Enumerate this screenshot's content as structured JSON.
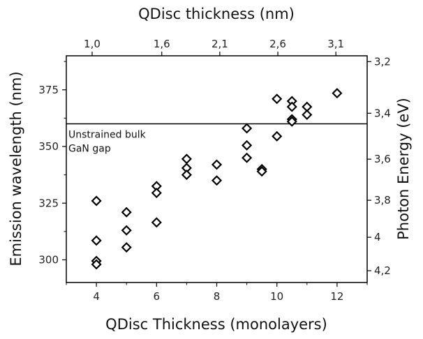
{
  "chart_data": {
    "type": "scatter",
    "xlabel": "QDisc Thickness (monolayers)",
    "ylabel": "Emission wavelength (nm)",
    "x2label": "QDisc thickness (nm)",
    "y2label": "Photon Energy (eV)",
    "xlim": [
      3,
      13
    ],
    "ylim": [
      290,
      390
    ],
    "x_ticks": [
      4,
      6,
      8,
      10,
      12
    ],
    "y_ticks": [
      300,
      325,
      350,
      375
    ],
    "x2_ticks": [
      {
        "label": "1,0",
        "value": 1.0
      },
      {
        "label": "1,6",
        "value": 1.6
      },
      {
        "label": "2,1",
        "value": 2.1
      },
      {
        "label": "2,6",
        "value": 2.6
      },
      {
        "label": "3,1",
        "value": 3.1
      }
    ],
    "y2_ticks": [
      {
        "label": "3,2",
        "value": 3.2
      },
      {
        "label": "3,4",
        "value": 3.4
      },
      {
        "label": "3,6",
        "value": 3.6
      },
      {
        "label": "3,8",
        "value": 3.8
      },
      {
        "label": "4",
        "value": 4.0
      },
      {
        "label": "4,2",
        "value": 4.2
      }
    ],
    "reference_line": {
      "y": 360,
      "label_lines": [
        "Unstrained bulk",
        "GaN gap"
      ]
    },
    "marker": "diamond-open",
    "marker_color": "#000000",
    "points": [
      {
        "x": 4,
        "y": 326
      },
      {
        "x": 4,
        "y": 308.5
      },
      {
        "x": 4,
        "y": 299.5
      },
      {
        "x": 4,
        "y": 298
      },
      {
        "x": 5,
        "y": 321
      },
      {
        "x": 5,
        "y": 313
      },
      {
        "x": 5,
        "y": 305.5
      },
      {
        "x": 6,
        "y": 332.5
      },
      {
        "x": 6,
        "y": 329.5
      },
      {
        "x": 6,
        "y": 316.5
      },
      {
        "x": 7,
        "y": 344.5
      },
      {
        "x": 7,
        "y": 340.5
      },
      {
        "x": 7,
        "y": 337.5
      },
      {
        "x": 8,
        "y": 342
      },
      {
        "x": 8,
        "y": 335
      },
      {
        "x": 9,
        "y": 358
      },
      {
        "x": 9,
        "y": 350.5
      },
      {
        "x": 9,
        "y": 345
      },
      {
        "x": 9.5,
        "y": 340
      },
      {
        "x": 9.5,
        "y": 339
      },
      {
        "x": 10,
        "y": 371
      },
      {
        "x": 10,
        "y": 354.5
      },
      {
        "x": 10.5,
        "y": 370
      },
      {
        "x": 10.5,
        "y": 367.5
      },
      {
        "x": 10.5,
        "y": 362
      },
      {
        "x": 10.5,
        "y": 361
      },
      {
        "x": 11,
        "y": 367.5
      },
      {
        "x": 11,
        "y": 364
      },
      {
        "x": 12,
        "y": 373.5
      }
    ]
  }
}
